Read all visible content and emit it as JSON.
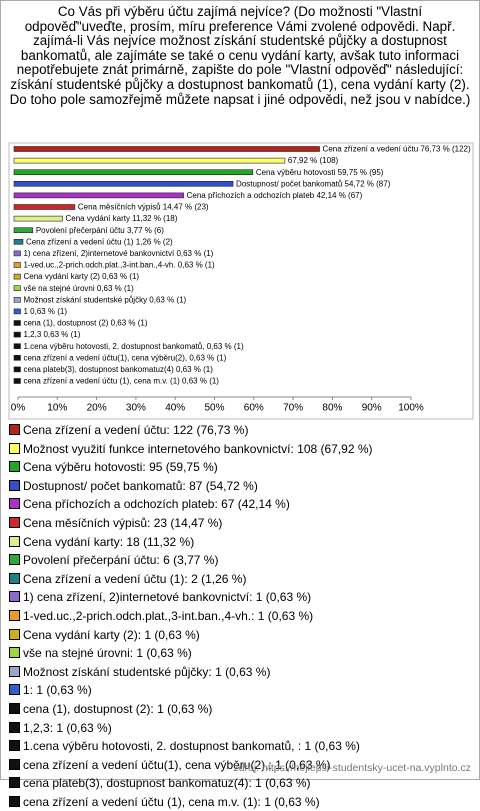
{
  "chart_data": {
    "type": "bar",
    "title": "Co Vás při výběru účtu zajímá nejvíce? (Do možnosti \"Vlastní odpověď\"uveďte, prosím, míru preference Vámi zvolené odpovědi. Např. zajímá-li Vás nejvíce možnost získání studentské půjčky a dostupnost bankomatů, ale zajímáte se také o cenu vydání karty, avšak tuto informaci nepotřebujete znát primárně, zapište do pole \"Vlastní odpověď\" následující: získání studentské půjčky a dostupnost bankomatů (1), cena vydání karty (2). Do toho pole samozřejmě můžete napsat i jiné odpovědi, než jsou v nabídce.)",
    "categories": [
      "Cena zřízení a vedení účtu",
      "Možnost využití funkce internetového bankovnictví",
      "Cena výběru hotovosti",
      "Dostupnost/ počet bankomatů",
      "Cena příchozích a odchozích plateb",
      "Cena měsíčních výpisů",
      "Cena vydání karty",
      "Povolení přečerpání účtu",
      "Cena zřízení a vedení účtu (1)",
      "1) cena zřízení, 2)internetové bankovnictví",
      "1-ved.uc.,2-prich.odch.plat.,3-int.ban.,4-vh.",
      "Cena vydání karty (2)",
      "vše na stejné úrovni",
      "Možnost získání studentské půjčky",
      "1",
      "cena (1), dostupnost (2)",
      "1,2,3",
      "1.cena výběru hotovosti, 2. dostupnost bankomatů, ",
      "cena zřízení a vedení účtu(1), cena výběru(2),",
      "cena plateb(3), dostupnost bankomatuz(4)",
      "cena zřízení a vedení účtu (1), cena m.v. (1)"
    ],
    "values": [
      76.73,
      67.92,
      59.75,
      54.72,
      42.14,
      14.47,
      11.32,
      3.77,
      1.26,
      0.63,
      0.63,
      0.63,
      0.63,
      0.63,
      0.63,
      0.63,
      0.63,
      0.63,
      0.63,
      0.63,
      0.63
    ],
    "value_labels": [
      "Cena zřízení a vedení účtu 76,73 % (122)",
      "67,92 % (108)",
      "Cena výběru hotovosti 59,75 % (95)",
      "Dostupnost/ počet bankomatů 54,72 % (87)",
      "Cena příchozích a odchozích plateb 42,14 % (67)",
      "Cena měsíčních výpisů 14,47 % (23)",
      "Cena vydání karty 11,32 % (18)",
      "Povolení přečerpání účtu 3,77 % (6)",
      "Cena zřízení a vedení účtu (1) 1,26 % (2)",
      "1) cena zřízení, 2)internetové bankovnictví 0,63 % (1)",
      "1-ved.uc.,2-prich.odch.plat.,3-int.ban.,4-vh. 0,63 % (1)",
      "Cena vydání karty (2) 0,63 % (1)",
      "vše na stejné úrovni 0,63 % (1)",
      "Možnost získání studentské půjčky 0,63 % (1)",
      "1 0,63 % (1)",
      "cena (1), dostupnost (2) 0,63 % (1)",
      "1,2,3 0,63 % (1)",
      "1.cena výběru hotovosti, 2. dostupnost bankomatů,  0,63 % (1)",
      "cena zřízení a vedení účtu(1), cena výběru(2), 0,63 % (1)",
      "cena plateb(3), dostupnost bankomatuz(4) 0,63 % (1)",
      "cena zřízení a vedení účtu (1), cena m.v. (1) 0,63 % (1)"
    ],
    "legend_labels": [
      "Cena zřízení a vedení účtu: 122 (76,73 %)",
      "Možnost využití funkce internetového bankovnictví: 108 (67,92 %)",
      "Cena výběru hotovosti: 95 (59,75 %)",
      "Dostupnost/ počet bankomatů: 87 (54,72 %)",
      "Cena příchozích a odchozích plateb: 67 (42,14 %)",
      "Cena měsíčních výpisů: 23 (14,47 %)",
      "Cena vydání karty: 18 (11,32 %)",
      "Povolení přečerpání účtu: 6 (3,77 %)",
      "Cena zřízení a vedení účtu (1): 2 (1,26 %)",
      "1) cena zřízení, 2)internetové bankovnictví: 1 (0,63 %)",
      "1-ved.uc.,2-prich.odch.plat.,3-int.ban.,4-vh.: 1 (0,63 %)",
      "Cena vydání karty (2): 1 (0,63 %)",
      "vše na stejné úrovni: 1 (0,63 %)",
      "Možnost získání studentské půjčky: 1 (0,63 %)",
      "1: 1 (0,63 %)",
      "cena (1), dostupnost (2): 1 (0,63 %)",
      "1,2,3: 1 (0,63 %)",
      "1.cena výběru hotovosti, 2. dostupnost bankomatů, : 1 (0,63 %)",
      "cena zřízení a vedení účtu(1), cena výběru(2),: 1 (0,63 %)",
      "cena plateb(3), dostupnost bankomatuz(4): 1 (0,63 %)",
      "cena zřízení a vedení účtu (1), cena m.v. (1): 1 (0,63 %)"
    ],
    "colors": [
      "#b5241c",
      "#ffff66",
      "#22a822",
      "#3450c8",
      "#a832c8",
      "#cc2a2a",
      "#dcee88",
      "#2fa83a",
      "#1f7f86",
      "#8a6ad0",
      "#ee9a2e",
      "#cfae24",
      "#9ad844",
      "#9aa8c8",
      "#2f5fcf",
      "#111111",
      "#111111",
      "#111111",
      "#111111",
      "#111111",
      "#111111"
    ],
    "xlim": [
      0,
      100
    ],
    "xticks": [
      {
        "value": 0,
        "label": "0%"
      },
      {
        "value": 10,
        "label": "10%"
      },
      {
        "value": 20,
        "label": "20%"
      },
      {
        "value": 30,
        "label": "30%"
      },
      {
        "value": 40,
        "label": "40%"
      },
      {
        "value": 50,
        "label": "50%"
      },
      {
        "value": 60,
        "label": "60%"
      },
      {
        "value": 70,
        "label": "70%"
      },
      {
        "value": 80,
        "label": "80%"
      },
      {
        "value": 90,
        "label": "90%"
      },
      {
        "value": 100,
        "label": "100%"
      }
    ],
    "source": "zdroj: https://nejlepsi-studentsky-ucet-na.vyplnto.cz"
  }
}
